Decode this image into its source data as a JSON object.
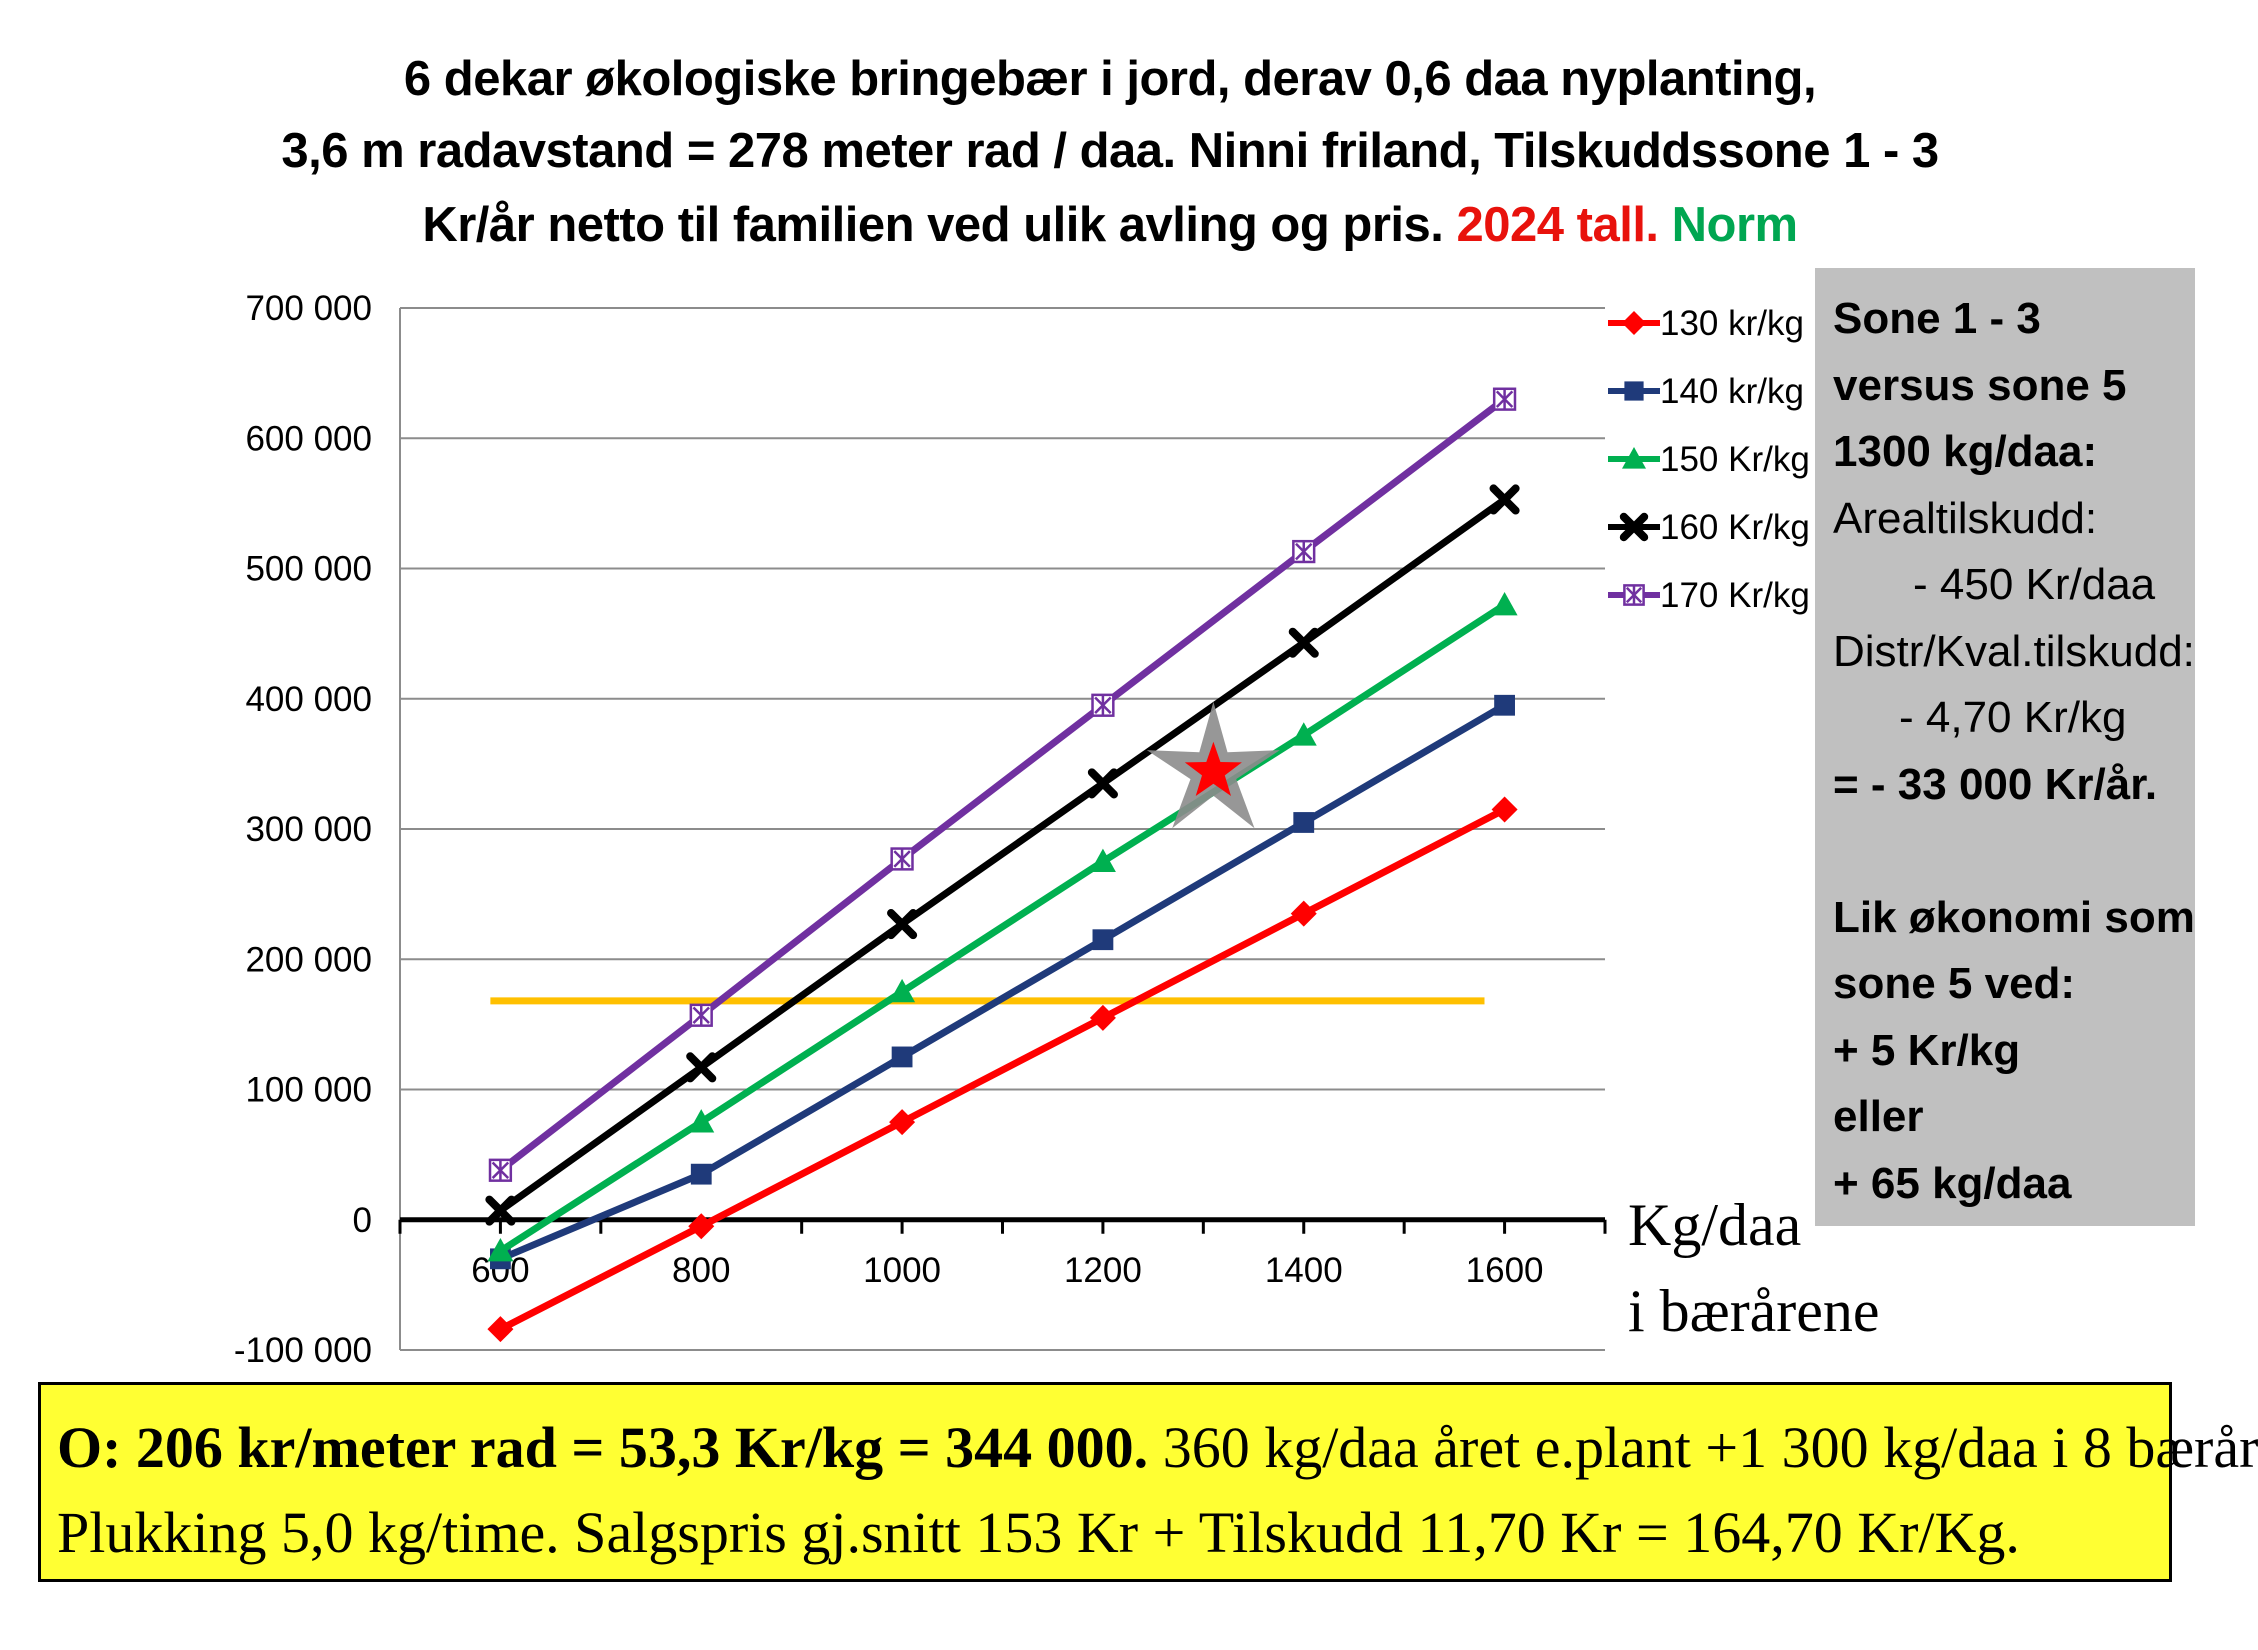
{
  "title": {
    "line1": "6 dekar økologiske bringebær i jord, derav 0,6 daa nyplanting,",
    "line2": "3,6 m radavstand = 278 meter rad / daa. Ninni friland, Tilskuddssone 1 - 3",
    "line3_black": "Kr/år netto til familien ved ulik avling og pris.",
    "line3_red": "2024 tall.",
    "line3_green": "Norm"
  },
  "chart_data": {
    "type": "line",
    "xlabel": [
      "Kg/daa",
      "i bærårene"
    ],
    "x": [
      600,
      800,
      1000,
      1200,
      1400,
      1600
    ],
    "x_tick_labels": [
      "600",
      "800",
      "1000",
      "1200",
      "1400",
      "1600"
    ],
    "ylim": [
      -100000,
      700000
    ],
    "y_ticks": [
      -100000,
      0,
      100000,
      200000,
      300000,
      400000,
      500000,
      600000,
      700000
    ],
    "y_tick_labels": [
      "-100 000",
      "0",
      "100 000",
      "200 000",
      "300 000",
      "400 000",
      "500 000",
      "600 000",
      "700 000"
    ],
    "grid": "horizontal",
    "legend_position": "top-right",
    "series": [
      {
        "name": "130 kr/kg",
        "color": "#ff0000",
        "marker": "diamond",
        "values": [
          -84000,
          -5000,
          75000,
          155000,
          235000,
          315000
        ]
      },
      {
        "name": "140 kr/kg",
        "color": "#1f3a7a",
        "marker": "square",
        "values": [
          -30000,
          35000,
          125000,
          215000,
          305000,
          395000
        ]
      },
      {
        "name": "150 Kr/kg",
        "color": "#00b050",
        "marker": "triangle",
        "values": [
          -24000,
          75000,
          175000,
          275000,
          372000,
          472000
        ]
      },
      {
        "name": "160 Kr/kg",
        "color": "#000000",
        "marker": "x",
        "values": [
          7000,
          117000,
          227000,
          335000,
          443000,
          553000
        ]
      },
      {
        "name": "170 Kr/kg",
        "color": "#7030a0",
        "marker": "asterisk-box",
        "values": [
          38000,
          157000,
          277000,
          395000,
          513000,
          630000
        ]
      }
    ],
    "reference_line": {
      "value": 168000,
      "x_range": [
        590,
        1580
      ],
      "color": "#ffc000"
    },
    "highlight_point": {
      "x": 1310,
      "y": 344000,
      "color": "#ff0000",
      "outline": "#8c8c8c"
    }
  },
  "info_box": {
    "lines": [
      "Sone 1 - 3",
      "versus sone 5",
      "1300 kg/daa:",
      "Arealtilskudd:",
      "- 450 Kr/daa",
      "Distr/Kval.tilskudd:",
      "- 4,70 Kr/kg",
      "= - 33 000 Kr/år.",
      "",
      "Lik økonomi som",
      "sone 5 ved:",
      "+ 5 Kr/kg",
      "eller",
      "+ 65 kg/daa"
    ]
  },
  "bottom_box": {
    "line1_bold": "O: 206 kr/meter rad = 53,3 Kr/kg = 344 000.",
    "line1_rest": " 360 kg/daa året e.plant +1 300 kg/daa i 8 bærår",
    "line2": "Plukking 5,0 kg/time. Salgspris gj.snitt 153 Kr + Tilskudd 11,70 Kr = 164,70 Kr/Kg."
  }
}
